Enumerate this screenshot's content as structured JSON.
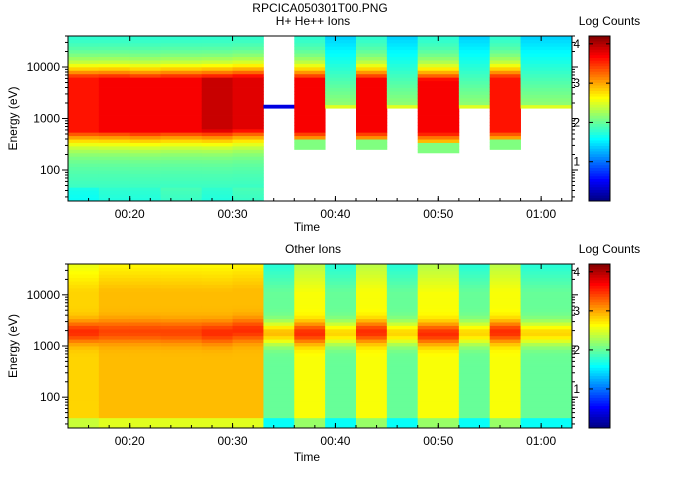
{
  "figure_title": "RPCICA050301T00.PNG",
  "chart_data": [
    {
      "type": "heatmap",
      "title": "H+ He++ Ions",
      "xlabel": "Time",
      "ylabel": "Energy (eV)",
      "x_ticks": [
        "00:20",
        "00:30",
        "00:40",
        "00:50",
        "01:00"
      ],
      "y_ticks": [
        "100",
        "1000",
        "10000"
      ],
      "y_scale": "log",
      "ylim": [
        25,
        40000
      ],
      "xlim": [
        "00:14",
        "01:03"
      ],
      "colorbar": {
        "label": "Log Counts",
        "ticks": [
          "1",
          "2",
          "3",
          "4"
        ],
        "range": [
          0,
          4.2
        ]
      },
      "segments": [
        {
          "start": "00:14",
          "end": "00:17",
          "min_energy": 25,
          "peak_energy": 1900,
          "peak": 3.6,
          "low_energy_level": 1.6
        },
        {
          "start": "00:17",
          "end": "00:20",
          "min_energy": 25,
          "peak_energy": 1900,
          "peak": 3.7,
          "low_energy_level": 1.7
        },
        {
          "start": "00:20",
          "end": "00:23",
          "min_energy": 25,
          "peak_energy": 1850,
          "peak": 3.7,
          "low_energy_level": 1.7
        },
        {
          "start": "00:23",
          "end": "00:27",
          "min_energy": 25,
          "peak_energy": 1900,
          "peak": 3.7,
          "low_energy_level": 1.8
        },
        {
          "start": "00:27",
          "end": "00:30",
          "min_energy": 25,
          "peak_energy": 1900,
          "peak": 3.9,
          "low_energy_level": 1.7
        },
        {
          "start": "00:30",
          "end": "00:33",
          "min_energy": 25,
          "peak_energy": 2000,
          "peak": 3.8,
          "low_energy_level": 1.8
        },
        {
          "start": "00:33",
          "end": "00:36",
          "min_energy": 1600,
          "peak_energy": 1600,
          "peak": 0.4
        },
        {
          "start": "00:36",
          "end": "00:39",
          "min_energy": 250,
          "peak_energy": 1850,
          "peak": 3.7
        },
        {
          "start": "00:39",
          "end": "00:42",
          "min_energy": 1700,
          "peak_energy": 1700,
          "peak": 2.2
        },
        {
          "start": "00:42",
          "end": "00:45",
          "min_energy": 250,
          "peak_energy": 1850,
          "peak": 3.7
        },
        {
          "start": "00:45",
          "end": "00:48",
          "min_energy": 1700,
          "peak_energy": 1700,
          "peak": 2.2
        },
        {
          "start": "00:48",
          "end": "00:52",
          "min_energy": 220,
          "peak_energy": 1750,
          "peak": 3.7
        },
        {
          "start": "00:52",
          "end": "00:55",
          "min_energy": 1700,
          "peak_energy": 1700,
          "peak": 2.2
        },
        {
          "start": "00:55",
          "end": "00:58",
          "min_energy": 250,
          "peak_energy": 1900,
          "peak": 3.6
        },
        {
          "start": "00:58",
          "end": "01:03",
          "min_energy": 1700,
          "peak_energy": 1700,
          "peak": 2.2
        }
      ]
    },
    {
      "type": "heatmap",
      "title": "Other Ions",
      "xlabel": "Time",
      "ylabel": "Energy (eV)",
      "x_ticks": [
        "00:20",
        "00:30",
        "00:40",
        "00:50",
        "01:00"
      ],
      "y_ticks": [
        "100",
        "1000",
        "10000"
      ],
      "y_scale": "log",
      "ylim": [
        25,
        40000
      ],
      "xlim": [
        "00:14",
        "01:03"
      ],
      "colorbar": {
        "label": "Log Counts",
        "ticks": [
          "1",
          "2",
          "3",
          "4"
        ],
        "range": [
          0,
          4.2
        ]
      },
      "segments": [
        {
          "start": "00:14",
          "end": "00:17",
          "peak_energy": 1900,
          "peak": 3.5,
          "base": 2.8
        },
        {
          "start": "00:17",
          "end": "00:20",
          "peak_energy": 1950,
          "peak": 3.4,
          "base": 2.9
        },
        {
          "start": "00:20",
          "end": "00:23",
          "peak_energy": 1950,
          "peak": 3.4,
          "base": 2.9
        },
        {
          "start": "00:23",
          "end": "00:27",
          "peak_energy": 1900,
          "peak": 3.4,
          "base": 2.9
        },
        {
          "start": "00:27",
          "end": "00:30",
          "peak_energy": 1850,
          "peak": 3.5,
          "base": 2.9
        },
        {
          "start": "00:30",
          "end": "00:33",
          "peak_energy": 2050,
          "peak": 3.5,
          "base": 2.9
        },
        {
          "start": "00:33",
          "end": "00:36",
          "peak_energy": 1800,
          "peak": 2.9,
          "base": 2.0
        },
        {
          "start": "00:36",
          "end": "00:39",
          "peak_energy": 1800,
          "peak": 3.5,
          "base": 2.6
        },
        {
          "start": "00:39",
          "end": "00:42",
          "peak_energy": 1800,
          "peak": 2.8,
          "base": 2.0
        },
        {
          "start": "00:42",
          "end": "00:45",
          "peak_energy": 1900,
          "peak": 3.5,
          "base": 2.6
        },
        {
          "start": "00:45",
          "end": "00:48",
          "peak_energy": 1800,
          "peak": 2.8,
          "base": 2.0
        },
        {
          "start": "00:48",
          "end": "00:52",
          "peak_energy": 1750,
          "peak": 3.5,
          "base": 2.6
        },
        {
          "start": "00:52",
          "end": "00:55",
          "peak_energy": 1800,
          "peak": 2.8,
          "base": 2.0
        },
        {
          "start": "00:55",
          "end": "00:58",
          "peak_energy": 1900,
          "peak": 3.5,
          "base": 2.6
        },
        {
          "start": "00:58",
          "end": "01:03",
          "peak_energy": 1800,
          "peak": 2.8,
          "base": 2.0
        }
      ]
    }
  ]
}
